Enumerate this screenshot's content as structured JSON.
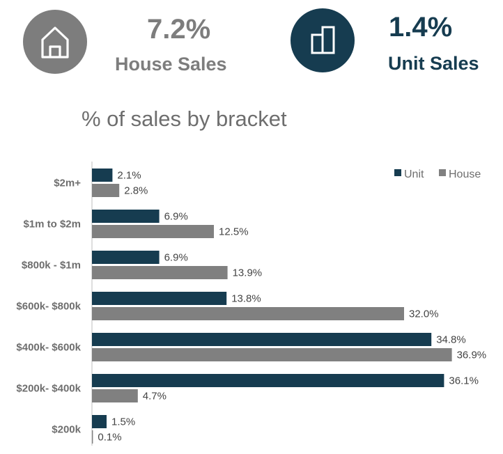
{
  "kpis": {
    "house": {
      "value": "7.2%",
      "label": "House Sales",
      "icon": "house-icon",
      "color": "#7d7d7d"
    },
    "unit": {
      "value": "1.4%",
      "label": "Unit Sales",
      "icon": "apartment-unit-icon",
      "color": "#163c50"
    }
  },
  "chart_data": {
    "type": "bar",
    "orientation": "horizontal",
    "title": "% of sales by bracket",
    "categories": [
      "$2m+",
      "$1m to $2m",
      "$800k - $1m",
      "$600k- $800k",
      "$400k- $600k",
      "$200k- $400k",
      "$200k"
    ],
    "series": [
      {
        "name": "Unit",
        "color": "#163c50",
        "values": [
          2.1,
          6.9,
          6.9,
          13.8,
          34.8,
          36.1,
          1.5
        ]
      },
      {
        "name": "House",
        "color": "#808080",
        "values": [
          2.8,
          12.5,
          13.9,
          32.0,
          36.9,
          4.7,
          0.1
        ]
      }
    ],
    "value_format": "%",
    "legend_position": "top-right",
    "grid": false
  }
}
